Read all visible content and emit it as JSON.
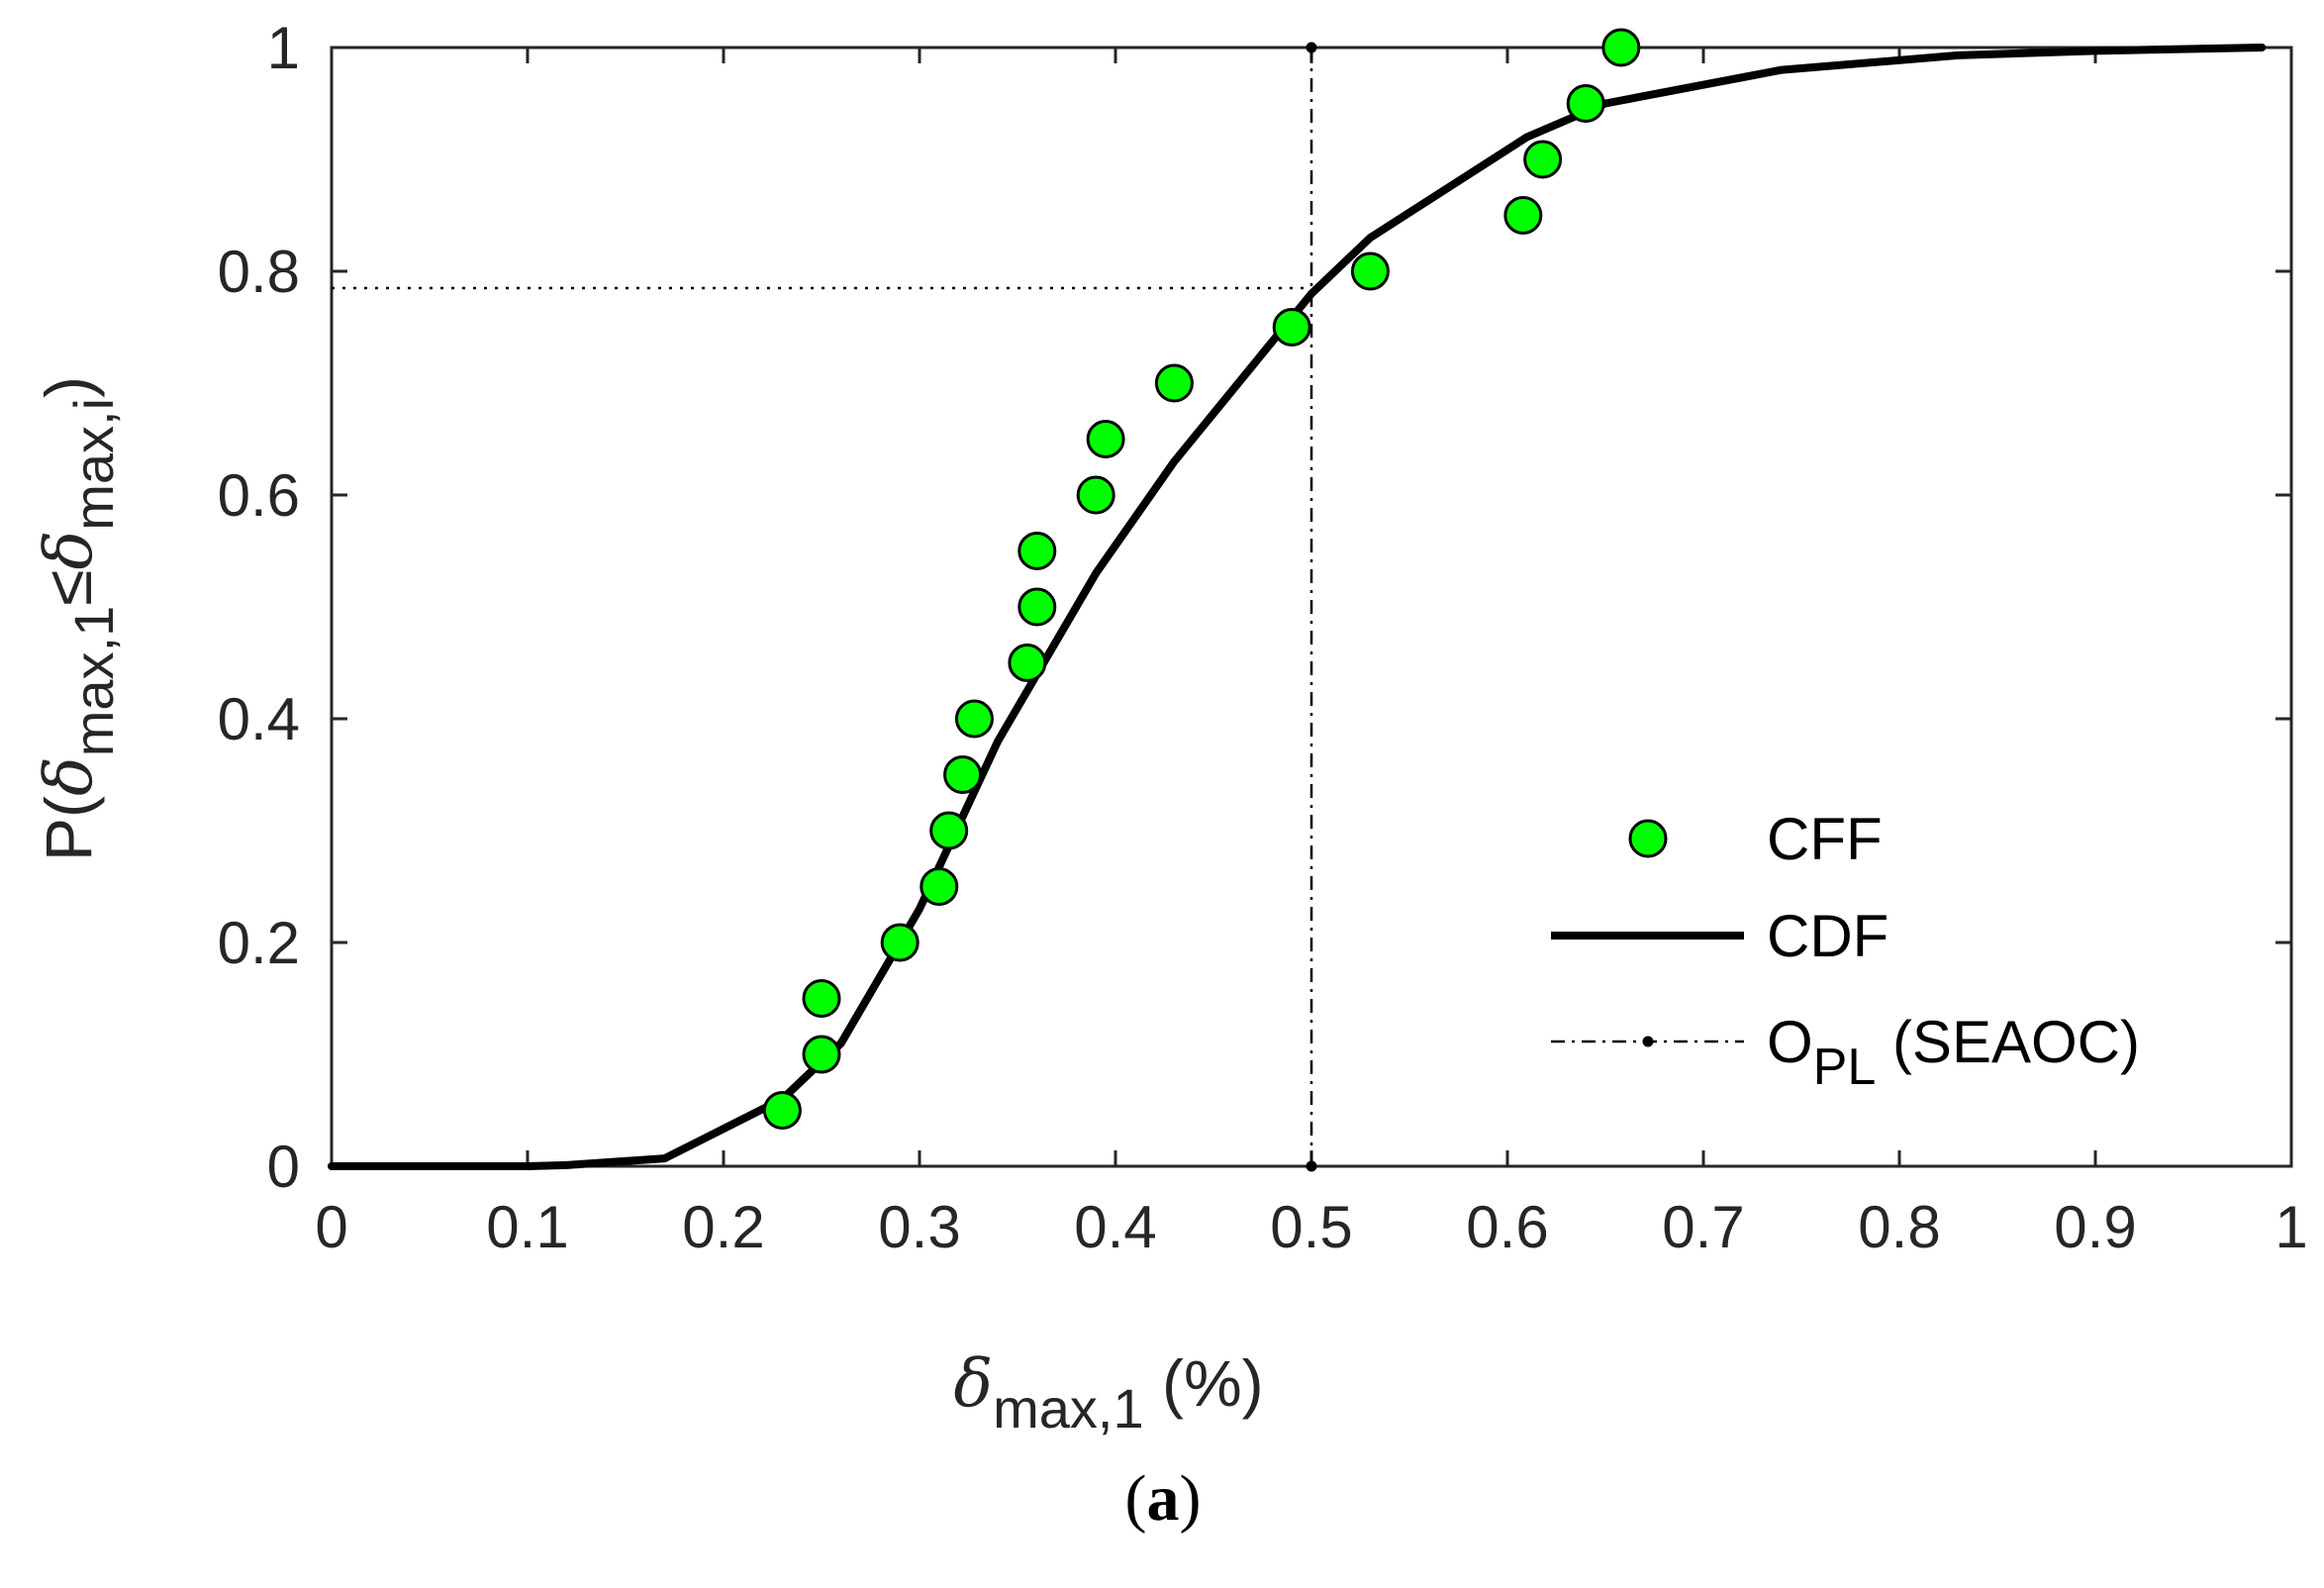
{
  "chart_data": {
    "type": "scatter",
    "xlabel": {
      "symbol": "δ",
      "sub": "max,1",
      "suffix": " (%)"
    },
    "ylabel": {
      "prefix": "P(",
      "sym1": "δ",
      "sub1": "max,1",
      "op": "≤",
      "sym2": "δ",
      "sub2": "max,i",
      "suffix": ")"
    },
    "caption": {
      "open": "(",
      "letter": "a",
      "close": ")"
    },
    "xlim": [
      0,
      1
    ],
    "ylim": [
      0,
      1
    ],
    "xticks": [
      0,
      0.1,
      0.2,
      0.3,
      0.4,
      0.5,
      0.6,
      0.7,
      0.8,
      0.9,
      1
    ],
    "xtick_labels": [
      "0",
      "0.1",
      "0.2",
      "0.3",
      "0.4",
      "0.5",
      "0.6",
      "0.7",
      "0.8",
      "0.9",
      "1"
    ],
    "yticks": [
      0,
      0.2,
      0.4,
      0.6,
      0.8,
      1
    ],
    "ytick_labels": [
      "0",
      "0.2",
      "0.4",
      "0.6",
      "0.8",
      "1"
    ],
    "grid": false,
    "legend_position": "lower-right",
    "series": [
      {
        "name": "CFF",
        "kind": "scatter",
        "color": "#00ff00",
        "edge_color": "#000000",
        "x": [
          0.23,
          0.25,
          0.25,
          0.29,
          0.31,
          0.315,
          0.322,
          0.328,
          0.355,
          0.36,
          0.36,
          0.39,
          0.395,
          0.43,
          0.49,
          0.53,
          0.608,
          0.618,
          0.64,
          0.658
        ],
        "y": [
          0.05,
          0.1,
          0.15,
          0.2,
          0.25,
          0.3,
          0.35,
          0.4,
          0.45,
          0.5,
          0.55,
          0.6,
          0.65,
          0.7,
          0.75,
          0.8,
          0.85,
          0.9,
          0.95,
          1.0
        ]
      },
      {
        "name": "CDF",
        "kind": "line",
        "color": "#000000",
        "x": [
          0,
          0.1,
          0.12,
          0.17,
          0.23,
          0.26,
          0.3,
          0.34,
          0.39,
          0.43,
          0.5,
          0.53,
          0.61,
          0.65,
          0.74,
          0.83,
          0.9,
          0.985
        ],
        "y": [
          0,
          0,
          0.001,
          0.007,
          0.06,
          0.11,
          0.23,
          0.38,
          0.53,
          0.63,
          0.78,
          0.83,
          0.92,
          0.95,
          0.98,
          0.993,
          0.997,
          1.0
        ]
      },
      {
        "name": "O",
        "name_sub": "PL",
        "name_suffix": " (SEAOC)",
        "kind": "vertical-line",
        "style": "dash-dot",
        "color": "#000000",
        "x": 0.5,
        "y_range": [
          0,
          1
        ]
      }
    ],
    "annotations": [
      {
        "kind": "horizontal-dotted-line",
        "y": 0.785,
        "x_range": [
          0,
          0.5
        ]
      }
    ]
  }
}
